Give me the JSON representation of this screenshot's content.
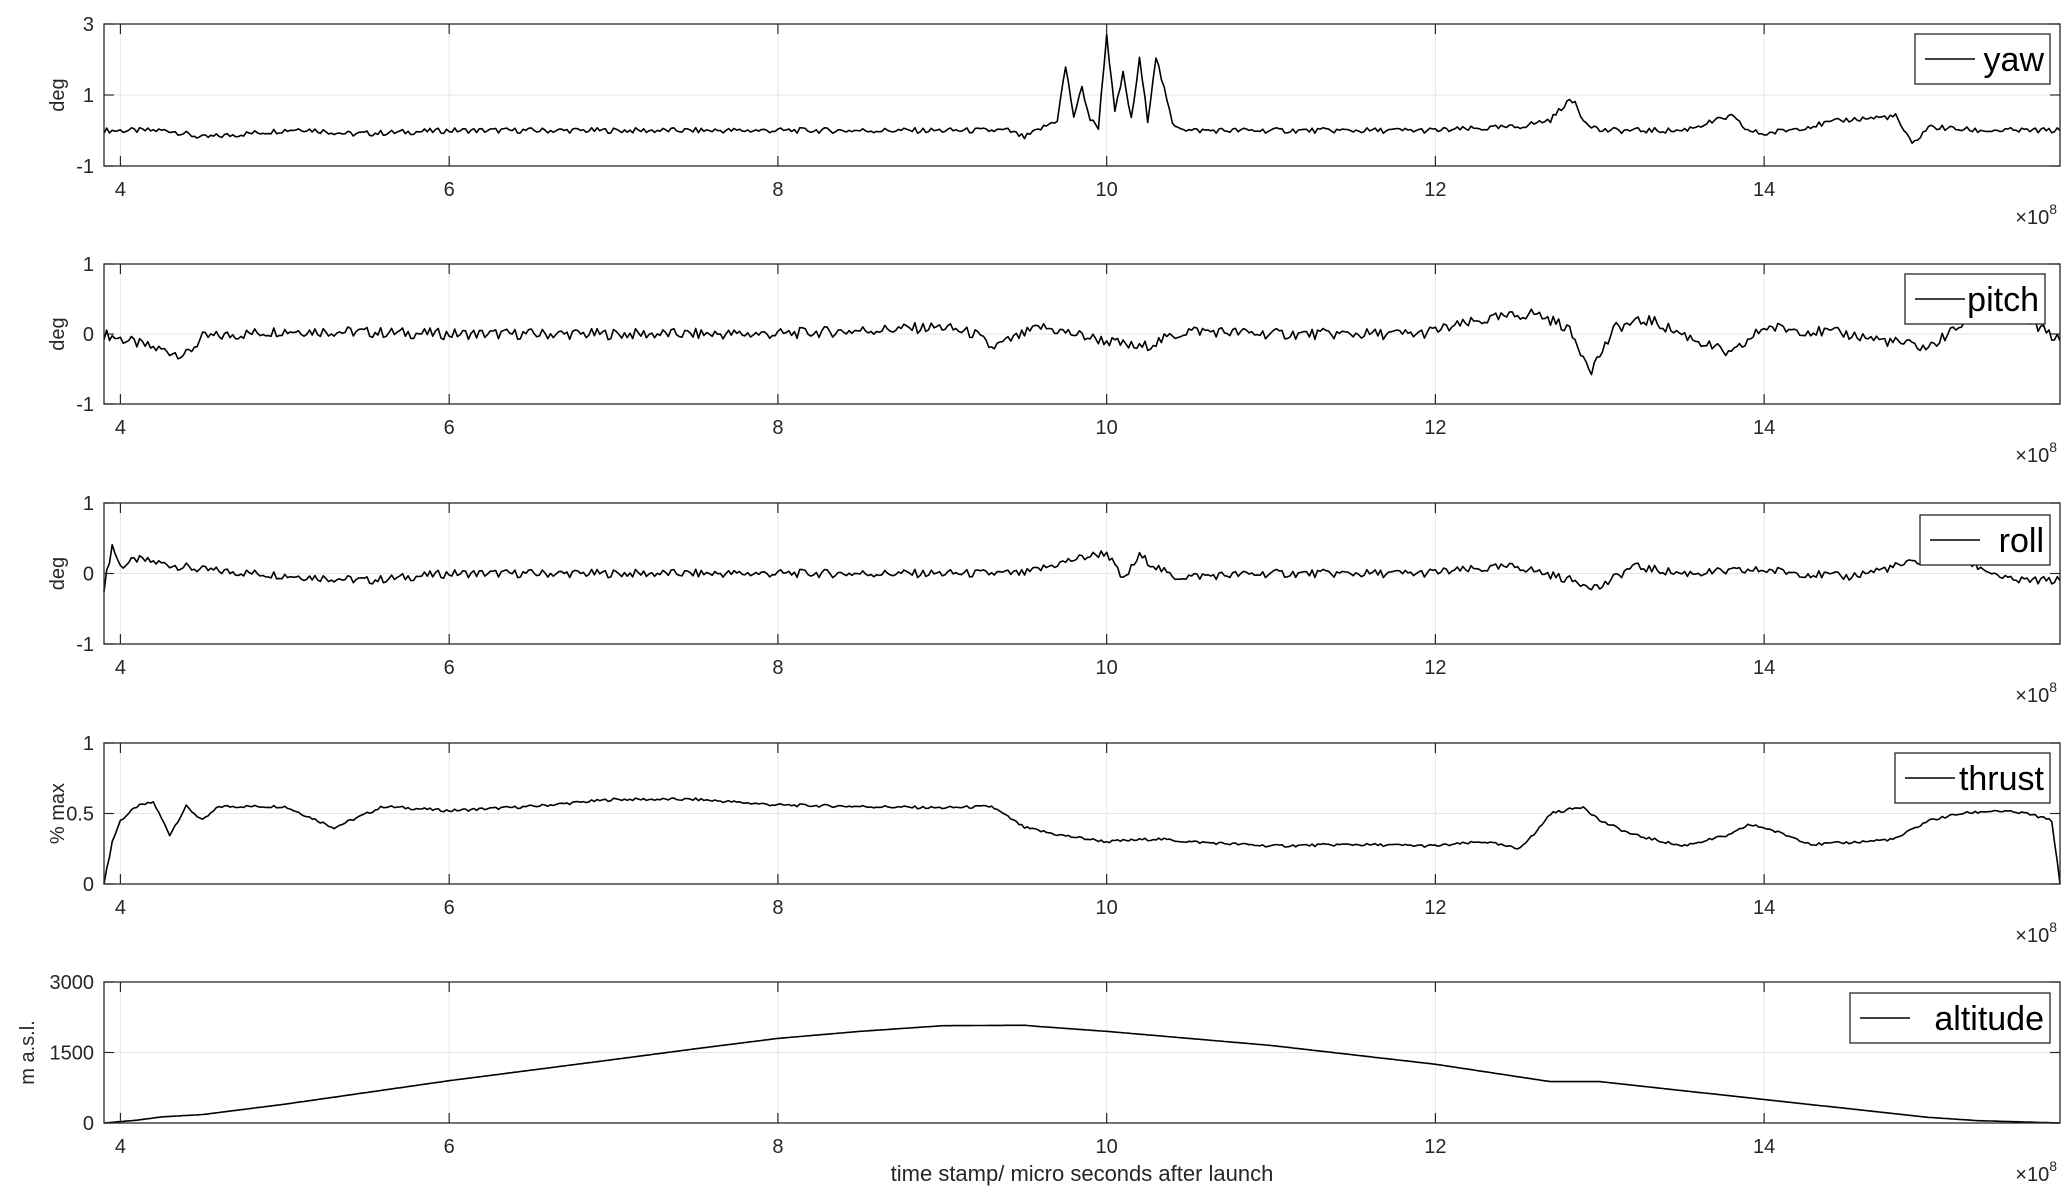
{
  "colors": {
    "line": "#000000",
    "grid": "#e6e6e6",
    "axis": "#262626"
  },
  "chart_data": [
    {
      "type": "line",
      "series": [
        {
          "name": "yaw",
          "x": [
            3.9,
            4.3,
            4.5,
            5.1,
            5.4,
            6.0,
            8.0,
            9.4,
            9.5,
            9.7,
            9.75,
            9.8,
            9.85,
            9.9,
            9.95,
            10.0,
            10.05,
            10.1,
            10.15,
            10.2,
            10.25,
            10.3,
            10.4,
            10.5,
            11.0,
            12.0,
            12.5,
            12.7,
            12.8,
            12.85,
            12.9,
            13.0,
            13.5,
            13.8,
            13.9,
            14.0,
            14.5,
            14.8,
            14.9,
            15.0,
            15.3,
            15.8
          ],
          "y": [
            0.0,
            0.0,
            -0.2,
            0.05,
            -0.1,
            0.0,
            0.0,
            0.0,
            -0.2,
            0.3,
            1.8,
            0.4,
            1.2,
            0.3,
            0.1,
            2.7,
            0.5,
            1.6,
            0.3,
            2.0,
            0.3,
            2.1,
            0.2,
            0.0,
            0.0,
            0.0,
            0.1,
            0.3,
            0.8,
            0.8,
            0.3,
            0.0,
            0.0,
            0.4,
            0.0,
            -0.1,
            0.3,
            0.4,
            -0.4,
            0.1,
            0.0,
            0.0
          ]
        }
      ],
      "ylabel": "deg",
      "xlim": [
        3.9,
        15.8
      ],
      "ylim": [
        -1,
        3
      ],
      "yticks": [
        "-1",
        "1",
        "3"
      ],
      "xticks": [
        "4",
        "6",
        "8",
        "10",
        "12",
        "14"
      ],
      "x_exponent": "×10^8",
      "grid": true,
      "legend": "top-right"
    },
    {
      "type": "line",
      "series": [
        {
          "name": "pitch",
          "x": [
            3.9,
            4.2,
            4.4,
            4.5,
            5.0,
            6.0,
            8.0,
            9.0,
            9.2,
            9.3,
            9.6,
            10.0,
            10.2,
            10.5,
            11.0,
            11.9,
            12.3,
            12.6,
            12.8,
            12.95,
            13.1,
            13.3,
            13.8,
            14.0,
            14.5,
            15.0,
            15.3,
            15.6,
            15.8
          ],
          "y": [
            0.0,
            -0.2,
            -0.3,
            -0.05,
            0.05,
            0.0,
            0.0,
            0.1,
            0.0,
            -0.2,
            0.1,
            -0.1,
            -0.2,
            0.05,
            0.0,
            0.0,
            0.2,
            0.3,
            0.1,
            -0.5,
            0.1,
            0.2,
            -0.3,
            0.1,
            0.0,
            -0.2,
            0.3,
            0.2,
            -0.1
          ]
        }
      ],
      "ylabel": "deg",
      "xlim": [
        3.9,
        15.8
      ],
      "ylim": [
        -1,
        1
      ],
      "yticks": [
        "-1",
        "0",
        "1"
      ],
      "xticks": [
        "4",
        "6",
        "8",
        "10",
        "12",
        "14"
      ],
      "x_exponent": "×10^8",
      "grid": true,
      "legend": "top-right"
    },
    {
      "type": "line",
      "series": [
        {
          "name": "roll",
          "x": [
            3.9,
            3.95,
            4.0,
            4.1,
            4.5,
            5.5,
            6.0,
            9.0,
            9.5,
            9.8,
            10.0,
            10.1,
            10.2,
            10.4,
            11.0,
            11.9,
            12.5,
            13.0,
            13.2,
            13.5,
            14.0,
            14.5,
            15.0,
            15.2,
            15.5,
            15.8
          ],
          "y": [
            -0.2,
            0.4,
            0.1,
            0.2,
            0.05,
            -0.1,
            0.0,
            0.0,
            0.0,
            0.2,
            0.3,
            -0.1,
            0.25,
            -0.05,
            0.0,
            0.0,
            0.1,
            -0.2,
            0.1,
            0.0,
            0.05,
            -0.05,
            0.2,
            0.2,
            -0.1,
            -0.1
          ]
        }
      ],
      "ylabel": "deg",
      "xlim": [
        3.9,
        15.8
      ],
      "ylim": [
        -1,
        1
      ],
      "yticks": [
        "-1",
        "0",
        "1"
      ],
      "xticks": [
        "4",
        "6",
        "8",
        "10",
        "12",
        "14"
      ],
      "x_exponent": "×10^8",
      "grid": true,
      "legend": "top-right"
    },
    {
      "type": "line",
      "series": [
        {
          "name": "thrust",
          "x": [
            3.9,
            3.95,
            4.0,
            4.1,
            4.2,
            4.3,
            4.4,
            4.5,
            4.6,
            5.0,
            5.3,
            5.6,
            6.0,
            6.5,
            7.0,
            7.5,
            8.0,
            8.5,
            9.0,
            9.3,
            9.5,
            9.7,
            10.0,
            10.3,
            10.5,
            11.0,
            11.5,
            12.0,
            12.3,
            12.5,
            12.6,
            12.7,
            12.9,
            13.0,
            13.2,
            13.5,
            13.8,
            13.9,
            14.0,
            14.3,
            14.6,
            14.8,
            15.0,
            15.2,
            15.4,
            15.6,
            15.75,
            15.8
          ],
          "y": [
            0.0,
            0.3,
            0.45,
            0.55,
            0.58,
            0.35,
            0.55,
            0.45,
            0.55,
            0.55,
            0.4,
            0.55,
            0.52,
            0.55,
            0.6,
            0.6,
            0.56,
            0.55,
            0.54,
            0.55,
            0.4,
            0.35,
            0.3,
            0.32,
            0.3,
            0.27,
            0.28,
            0.27,
            0.3,
            0.25,
            0.35,
            0.5,
            0.55,
            0.45,
            0.35,
            0.27,
            0.35,
            0.42,
            0.4,
            0.28,
            0.3,
            0.32,
            0.45,
            0.5,
            0.52,
            0.5,
            0.45,
            0.0
          ]
        }
      ],
      "ylabel": "% max",
      "xlim": [
        3.9,
        15.8
      ],
      "ylim": [
        0,
        1
      ],
      "yticks": [
        "0",
        "0.5",
        "1"
      ],
      "xticks": [
        "4",
        "6",
        "8",
        "10",
        "12",
        "14"
      ],
      "x_exponent": "×10^8",
      "grid": true,
      "legend": "top-right"
    },
    {
      "type": "line",
      "series": [
        {
          "name": "altitude",
          "x": [
            3.9,
            4.1,
            4.25,
            4.5,
            5.0,
            6.0,
            7.0,
            7.5,
            8.0,
            8.5,
            9.0,
            9.5,
            9.6,
            10.0,
            11.0,
            12.0,
            12.7,
            13.0,
            14.0,
            15.0,
            15.3,
            15.8
          ],
          "y": [
            0,
            60,
            130,
            180,
            400,
            900,
            1350,
            1580,
            1800,
            1950,
            2070,
            2080,
            2050,
            1950,
            1650,
            1250,
            880,
            880,
            500,
            120,
            50,
            0
          ]
        }
      ],
      "ylabel": "m a.s.l.",
      "xlabel": "time stamp/ micro seconds after launch",
      "xlim": [
        3.9,
        15.8
      ],
      "ylim": [
        0,
        3000
      ],
      "yticks": [
        "0",
        "1500",
        "3000"
      ],
      "xticks": [
        "4",
        "6",
        "8",
        "10",
        "12",
        "14"
      ],
      "x_exponent": "×10^8",
      "grid": true,
      "legend": "top-right"
    }
  ]
}
